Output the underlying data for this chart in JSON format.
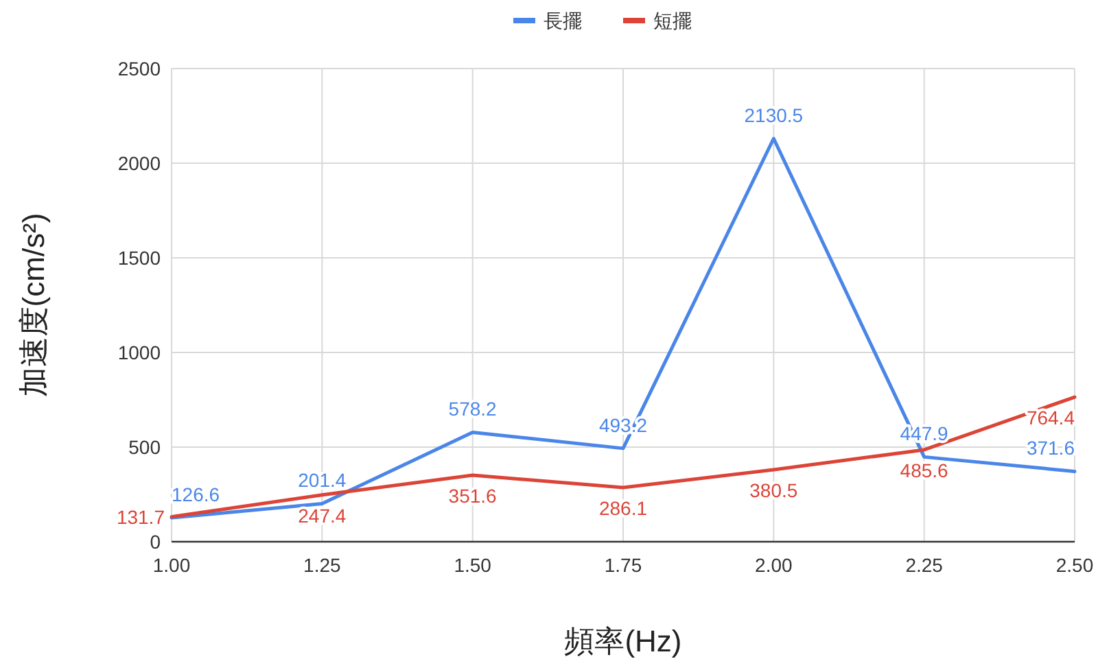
{
  "chart_data": {
    "type": "line",
    "xlabel": "頻率(Hz)",
    "ylabel": "加速度(cm/s²)",
    "x": [
      1.0,
      1.25,
      1.5,
      1.75,
      2.0,
      2.25,
      2.5
    ],
    "series": [
      {
        "name": "長擺",
        "color": "#4a86e8",
        "values": [
          126.6,
          201.4,
          578.2,
          493.2,
          2130.5,
          447.9,
          371.6
        ]
      },
      {
        "name": "短擺",
        "color": "#db4437",
        "values": [
          131.7,
          247.4,
          351.6,
          286.1,
          380.5,
          485.6,
          764.4
        ]
      }
    ],
    "xlim": [
      1.0,
      2.5
    ],
    "xticks": [
      {
        "value": 1.0,
        "label": "1.00"
      },
      {
        "value": 1.25,
        "label": "1.25"
      },
      {
        "value": 1.5,
        "label": "1.50"
      },
      {
        "value": 1.75,
        "label": "1.75"
      },
      {
        "value": 2.0,
        "label": "2.00"
      },
      {
        "value": 2.25,
        "label": "2.25"
      },
      {
        "value": 2.5,
        "label": "2.50"
      }
    ],
    "ylim": [
      0,
      2500
    ],
    "yticks": [
      0,
      500,
      1000,
      1500,
      2000,
      2500
    ],
    "grid": true,
    "legend": "top",
    "data_labels": true,
    "marker": "none",
    "line_style": "solid"
  }
}
